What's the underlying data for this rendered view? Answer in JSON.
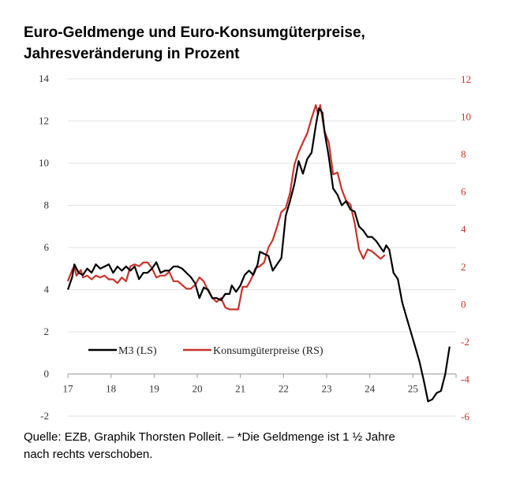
{
  "header": {
    "title_line1": "Euro-Geldmenge und Euro-Konsumgüterpreise,",
    "title_line2": "Jahresveränderung in Prozent"
  },
  "footer": {
    "source_line1": "Quelle: EZB, Graphik Thorsten Polleit. – *Die Geldmenge ist 1 ½ Jahre",
    "source_line2": "nach rechts verschoben."
  },
  "colors": {
    "m3": "#000000",
    "cpi": "#c8332a",
    "grid": "#e3e3e3",
    "axis": "#9a9a9a",
    "left_ticks": "#333333",
    "right_ticks": "#c8332a"
  },
  "chart_data": {
    "type": "line",
    "xlim": [
      17,
      26
    ],
    "x_ticks": [
      "17",
      "18",
      "19",
      "20",
      "21",
      "22",
      "23",
      "24",
      "25"
    ],
    "y_left": {
      "ylim": [
        -2,
        14
      ],
      "ticks": [
        "-2",
        "0",
        "2",
        "4",
        "6",
        "8",
        "10",
        "12",
        "14"
      ]
    },
    "y_right": {
      "ylim": [
        -6,
        12
      ],
      "ticks": [
        "-6",
        "-4",
        "-2",
        "0",
        "2",
        "4",
        "6",
        "8",
        "10",
        "12"
      ]
    },
    "grid": "horizontal",
    "legend_position": "lower-left",
    "series": [
      {
        "name": "M3 (LS)",
        "axis": "left",
        "color": "#000000",
        "points": [
          [
            17.0,
            4.0
          ],
          [
            17.1,
            4.6
          ],
          [
            17.15,
            5.2
          ],
          [
            17.25,
            4.8
          ],
          [
            17.35,
            4.7
          ],
          [
            17.45,
            5.0
          ],
          [
            17.55,
            4.8
          ],
          [
            17.65,
            5.2
          ],
          [
            17.75,
            5.0
          ],
          [
            17.85,
            5.1
          ],
          [
            17.95,
            5.2
          ],
          [
            18.05,
            4.8
          ],
          [
            18.15,
            5.1
          ],
          [
            18.25,
            4.9
          ],
          [
            18.35,
            5.1
          ],
          [
            18.45,
            4.9
          ],
          [
            18.55,
            5.1
          ],
          [
            18.65,
            4.5
          ],
          [
            18.75,
            4.8
          ],
          [
            18.85,
            4.8
          ],
          [
            18.95,
            5.0
          ],
          [
            19.05,
            5.3
          ],
          [
            19.15,
            4.8
          ],
          [
            19.25,
            4.9
          ],
          [
            19.35,
            4.9
          ],
          [
            19.45,
            5.1
          ],
          [
            19.55,
            5.1
          ],
          [
            19.65,
            5.0
          ],
          [
            19.75,
            4.8
          ],
          [
            19.85,
            4.6
          ],
          [
            19.95,
            4.3
          ],
          [
            20.05,
            3.6
          ],
          [
            20.15,
            4.1
          ],
          [
            20.25,
            4.0
          ],
          [
            20.35,
            3.6
          ],
          [
            20.45,
            3.6
          ],
          [
            20.55,
            3.5
          ],
          [
            20.65,
            3.8
          ],
          [
            20.75,
            3.8
          ],
          [
            20.8,
            4.2
          ],
          [
            20.9,
            3.9
          ],
          [
            21.0,
            4.2
          ],
          [
            21.1,
            4.7
          ],
          [
            21.2,
            4.9
          ],
          [
            21.3,
            4.7
          ],
          [
            21.4,
            5.2
          ],
          [
            21.45,
            5.8
          ],
          [
            21.55,
            5.7
          ],
          [
            21.65,
            5.6
          ],
          [
            21.75,
            4.9
          ],
          [
            21.85,
            5.2
          ],
          [
            21.95,
            5.5
          ],
          [
            22.05,
            7.5
          ],
          [
            22.15,
            8.2
          ],
          [
            22.25,
            9.0
          ],
          [
            22.35,
            10.1
          ],
          [
            22.45,
            9.5
          ],
          [
            22.55,
            10.2
          ],
          [
            22.65,
            10.5
          ],
          [
            22.75,
            11.8
          ],
          [
            22.82,
            12.6
          ],
          [
            22.9,
            12.4
          ],
          [
            22.95,
            11.5
          ],
          [
            23.05,
            10.3
          ],
          [
            23.15,
            8.8
          ],
          [
            23.25,
            8.5
          ],
          [
            23.35,
            8.0
          ],
          [
            23.45,
            8.2
          ],
          [
            23.55,
            7.8
          ],
          [
            23.65,
            7.7
          ],
          [
            23.75,
            7.0
          ],
          [
            23.85,
            6.8
          ],
          [
            23.95,
            6.5
          ],
          [
            24.05,
            6.5
          ],
          [
            24.15,
            6.3
          ],
          [
            24.25,
            6.0
          ],
          [
            24.32,
            5.8
          ],
          [
            24.38,
            6.1
          ],
          [
            24.45,
            5.9
          ],
          [
            24.55,
            4.8
          ],
          [
            24.65,
            4.5
          ],
          [
            24.75,
            3.4
          ],
          [
            24.85,
            2.7
          ],
          [
            24.95,
            2.0
          ],
          [
            25.05,
            1.3
          ],
          [
            25.15,
            0.6
          ],
          [
            25.25,
            -0.3
          ],
          [
            25.35,
            -1.3
          ],
          [
            25.45,
            -1.2
          ],
          [
            25.55,
            -0.9
          ],
          [
            25.65,
            -0.8
          ],
          [
            25.75,
            0.0
          ],
          [
            25.85,
            1.3
          ]
        ]
      },
      {
        "name": "Konsumgüterpreise (RS)",
        "axis": "right",
        "color": "#c8332a",
        "points": [
          [
            17.0,
            1.2
          ],
          [
            17.1,
            1.8
          ],
          [
            17.15,
            2.0
          ],
          [
            17.2,
            1.5
          ],
          [
            17.3,
            1.8
          ],
          [
            17.35,
            1.4
          ],
          [
            17.45,
            1.5
          ],
          [
            17.55,
            1.3
          ],
          [
            17.65,
            1.5
          ],
          [
            17.75,
            1.4
          ],
          [
            17.85,
            1.5
          ],
          [
            17.95,
            1.3
          ],
          [
            18.05,
            1.3
          ],
          [
            18.15,
            1.1
          ],
          [
            18.25,
            1.4
          ],
          [
            18.35,
            1.2
          ],
          [
            18.45,
            2.0
          ],
          [
            18.55,
            2.1
          ],
          [
            18.65,
            2.0
          ],
          [
            18.75,
            2.2
          ],
          [
            18.85,
            2.2
          ],
          [
            18.95,
            1.9
          ],
          [
            19.05,
            1.4
          ],
          [
            19.15,
            1.5
          ],
          [
            19.25,
            1.5
          ],
          [
            19.35,
            1.7
          ],
          [
            19.45,
            1.2
          ],
          [
            19.55,
            1.2
          ],
          [
            19.65,
            1.0
          ],
          [
            19.75,
            0.8
          ],
          [
            19.85,
            0.8
          ],
          [
            19.95,
            1.0
          ],
          [
            20.05,
            1.4
          ],
          [
            20.15,
            1.2
          ],
          [
            20.25,
            0.7
          ],
          [
            20.35,
            0.3
          ],
          [
            20.45,
            0.1
          ],
          [
            20.55,
            0.3
          ],
          [
            20.65,
            -0.2
          ],
          [
            20.75,
            -0.3
          ],
          [
            20.85,
            -0.3
          ],
          [
            20.95,
            -0.3
          ],
          [
            21.05,
            0.9
          ],
          [
            21.15,
            0.9
          ],
          [
            21.25,
            1.3
          ],
          [
            21.35,
            1.9
          ],
          [
            21.45,
            2.0
          ],
          [
            21.55,
            2.2
          ],
          [
            21.65,
            3.0
          ],
          [
            21.75,
            3.4
          ],
          [
            21.85,
            4.1
          ],
          [
            21.95,
            4.9
          ],
          [
            22.05,
            5.1
          ],
          [
            22.15,
            5.9
          ],
          [
            22.25,
            7.4
          ],
          [
            22.35,
            8.1
          ],
          [
            22.45,
            8.6
          ],
          [
            22.55,
            9.1
          ],
          [
            22.65,
            9.9
          ],
          [
            22.75,
            10.6
          ],
          [
            22.8,
            10.1
          ],
          [
            22.85,
            10.6
          ],
          [
            22.95,
            9.2
          ],
          [
            23.05,
            8.6
          ],
          [
            23.15,
            6.9
          ],
          [
            23.25,
            7.0
          ],
          [
            23.35,
            6.1
          ],
          [
            23.45,
            5.5
          ],
          [
            23.55,
            5.3
          ],
          [
            23.65,
            4.3
          ],
          [
            23.75,
            2.9
          ],
          [
            23.85,
            2.4
          ],
          [
            23.95,
            2.9
          ],
          [
            24.05,
            2.8
          ],
          [
            24.15,
            2.6
          ],
          [
            24.25,
            2.4
          ],
          [
            24.35,
            2.6
          ]
        ]
      }
    ]
  }
}
